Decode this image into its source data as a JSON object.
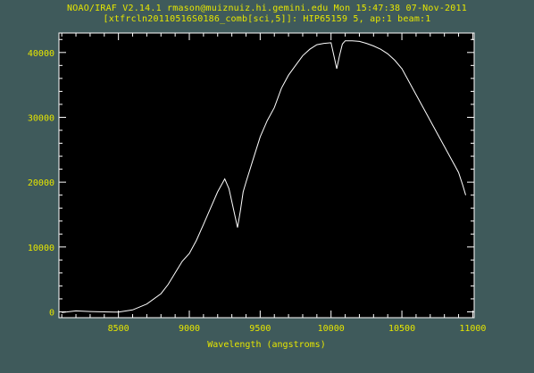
{
  "header": {
    "title_line1": "NOAO/IRAF V2.14.1 rmason@muiznuiz.hi.gemini.edu Mon 15:47:38 07-Nov-2011",
    "title_line2": "[xtfrcln20110516S0186_comb[sci,5]]: HIP65159 5, ap:1 beam:1"
  },
  "colors": {
    "background": "#3f5a5b",
    "plot_area": "#000000",
    "axes_text": "#e6e600",
    "spectrum": "#ffffff"
  },
  "chart_data": {
    "type": "line",
    "title": "NOAO/IRAF V2.14.1 rmason@muiznuiz.hi.gemini.edu Mon 15:47:38 07-Nov-2011",
    "subtitle": "[xtfrcln20110516S0186_comb[sci,5]]: HIP65159 5, ap:1 beam:1",
    "xlabel": "Wavelength (angstroms)",
    "ylabel": "",
    "xlim": [
      8080,
      11010
    ],
    "ylim": [
      -900,
      43000
    ],
    "x_ticks": [
      8500,
      9000,
      9500,
      10000,
      10500,
      11000
    ],
    "x_tick_labels": [
      "8500",
      "9000",
      "9500",
      "10000",
      "10500",
      "11000"
    ],
    "y_ticks": [
      0,
      10000,
      20000,
      30000,
      40000
    ],
    "y_tick_labels": [
      "0",
      "10000",
      "20000",
      "30000",
      "40000"
    ],
    "grid": false,
    "legend": "none",
    "series": [
      {
        "x": [
          8100,
          8200,
          8300,
          8400,
          8500,
          8600,
          8700,
          8800,
          8850,
          8900,
          8950,
          9000,
          9050,
          9100,
          9150,
          9200,
          9250,
          9280,
          9300,
          9320,
          9340,
          9360,
          9380,
          9400,
          9450,
          9500,
          9550,
          9600,
          9650,
          9700,
          9750,
          9800,
          9850,
          9900,
          9950,
          10000,
          10020,
          10040,
          10060,
          10080,
          10100,
          10150,
          10200,
          10250,
          10300,
          10350,
          10400,
          10450,
          10500,
          10550,
          10600,
          10650,
          10700,
          10750,
          10800,
          10850,
          10900,
          10930,
          10950
        ],
        "y": [
          -100,
          150,
          50,
          0,
          -50,
          300,
          1200,
          2800,
          4200,
          6000,
          7800,
          9000,
          11000,
          13500,
          16000,
          18500,
          20500,
          19000,
          17000,
          15000,
          13000,
          15500,
          18500,
          20000,
          23500,
          27000,
          29500,
          31500,
          34500,
          36500,
          38000,
          39500,
          40500,
          41200,
          41400,
          41500,
          39500,
          37500,
          39500,
          41300,
          41800,
          41800,
          41700,
          41400,
          41000,
          40500,
          39800,
          38800,
          37500,
          35500,
          33500,
          31500,
          29500,
          27500,
          25500,
          23500,
          21500,
          19500,
          18000
        ]
      }
    ]
  }
}
